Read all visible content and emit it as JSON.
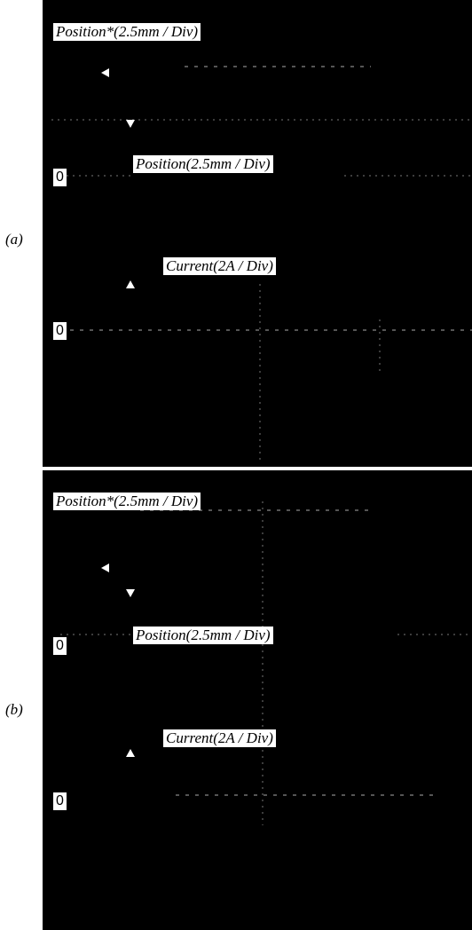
{
  "panels": [
    {
      "label": "(a)",
      "position_ref": "Position*(2.5mm / Div)",
      "position": "Position(2.5mm / Div)",
      "current": "Current(2A / Div)",
      "zero_labels": [
        "0",
        "0"
      ]
    },
    {
      "label": "(b)",
      "position_ref": "Position*(2.5mm / Div)",
      "position": "Position(2.5mm / Div)",
      "current": "Current(2A / Div)",
      "zero_labels": [
        "0",
        "0"
      ]
    }
  ]
}
